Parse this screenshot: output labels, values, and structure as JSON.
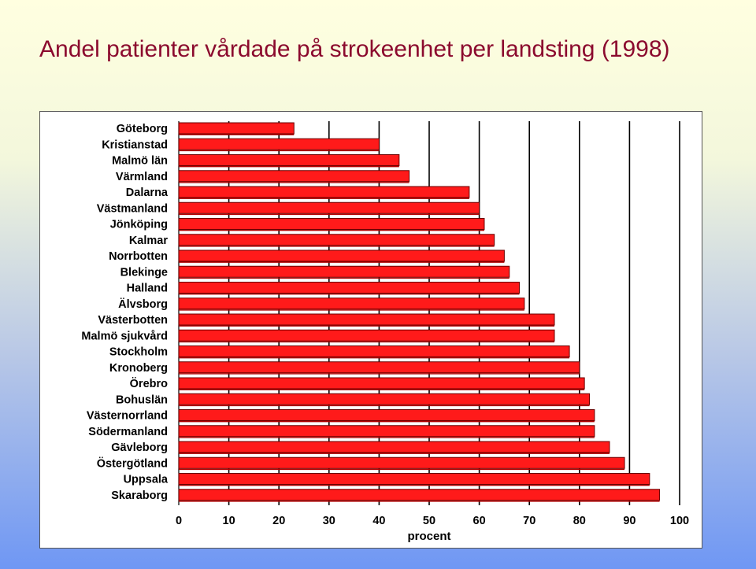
{
  "slide": {
    "title": "Andel patienter vårdade på strokeenhet per landsting (1998)"
  },
  "colors": {
    "title": "#8b0a2e",
    "bar_fill": "#ff1a1a",
    "bar_stroke": "#6a0000"
  },
  "chart_data": {
    "type": "bar",
    "orientation": "horizontal",
    "xlabel": "procent",
    "xlim": [
      0,
      100
    ],
    "xticks": [
      0,
      10,
      20,
      30,
      40,
      50,
      60,
      70,
      80,
      90,
      100
    ],
    "grid": "vertical",
    "categories": [
      "Göteborg",
      "Kristianstad",
      "Malmö län",
      "Värmland",
      "Dalarna",
      "Västmanland",
      "Jönköping",
      "Kalmar",
      "Norrbotten",
      "Blekinge",
      "Halland",
      "Älvsborg",
      "Västerbotten",
      "Malmö sjukvård",
      "Stockholm",
      "Kronoberg",
      "Örebro",
      "Bohuslän",
      "Västernorrland",
      "Södermanland",
      "Gävleborg",
      "Östergötland",
      "Uppsala",
      "Skaraborg"
    ],
    "values": [
      23,
      40,
      44,
      46,
      58,
      60,
      61,
      63,
      65,
      66,
      68,
      69,
      75,
      75,
      78,
      80,
      81,
      82,
      83,
      83,
      86,
      89,
      94,
      96
    ]
  }
}
